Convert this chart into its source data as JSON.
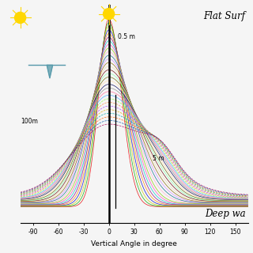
{
  "title_top_right": "Flat Surf",
  "title_bottom_right": "Deep wa",
  "xlabel": "Vertical Angle in degree",
  "x_ticks": [
    -90,
    -60,
    -30,
    0,
    30,
    60,
    90,
    120,
    150
  ],
  "xlim": [
    -105,
    165
  ],
  "ylim": [
    -0.08,
    1.08
  ],
  "annotation_05m": "0.5 m",
  "annotation_5m": "5 m",
  "annotation_100m": "100m",
  "background_color": "#f5f5f5",
  "num_curves": 30
}
